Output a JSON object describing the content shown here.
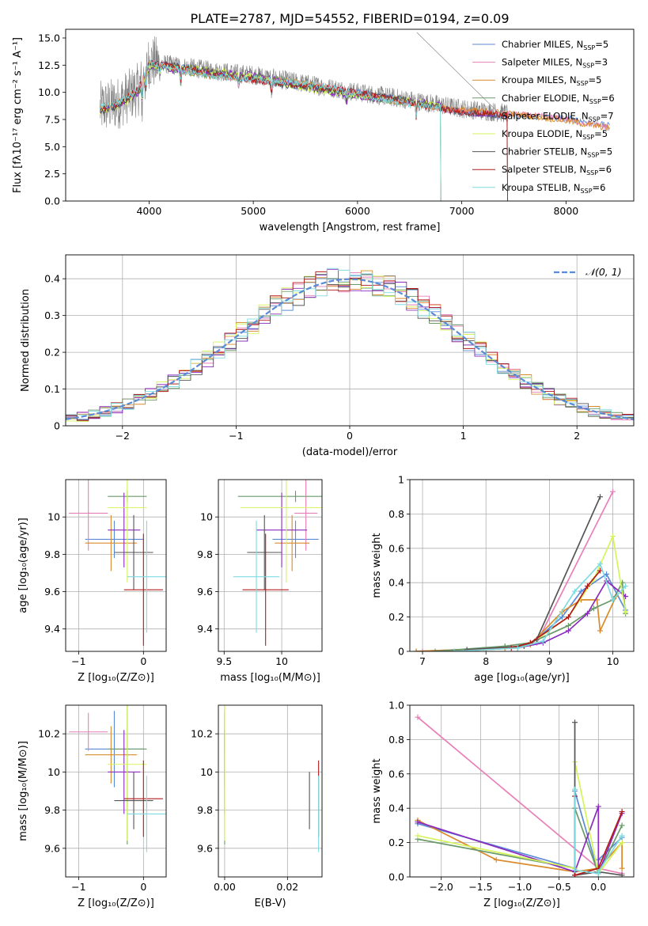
{
  "figure": {
    "title": "PLATE=2787, MJD=54552, FIBERID=0194, z=0.09"
  },
  "colors": {
    "chabrier_miles": "#5b8bd6",
    "salpeter_miles": "#e87fb9",
    "kroupa_miles": "#d98a2b",
    "chabrier_elodie": "#6a9a6a",
    "salpeter_elodie": "#8a2bbf",
    "kroupa_elodie": "#d4f55a",
    "chabrier_stelib": "#555555",
    "salpeter_stelib": "#b31b1b",
    "kroupa_stelib": "#7fdbe0",
    "data": "#808080",
    "normal": "#5b8bd6",
    "grid": "#b0b0b0"
  },
  "models": [
    {
      "key": "chabrier_miles",
      "label": "Chabrier MILES, N",
      "sub": "SSP",
      "n": "=5"
    },
    {
      "key": "salpeter_miles",
      "label": "Salpeter MILES, N",
      "sub": "SSP",
      "n": "=3"
    },
    {
      "key": "kroupa_miles",
      "label": "Kroupa MILES, N",
      "sub": "SSP",
      "n": "=5"
    },
    {
      "key": "chabrier_elodie",
      "label": "Chabrier ELODIE, N",
      "sub": "SSP",
      "n": "=6"
    },
    {
      "key": "salpeter_elodie",
      "label": "Salpeter ELODIE, N",
      "sub": "SSP",
      "n": "=7"
    },
    {
      "key": "kroupa_elodie",
      "label": "Kroupa ELODIE, N",
      "sub": "SSP",
      "n": "=5"
    },
    {
      "key": "chabrier_stelib",
      "label": "Chabrier STELIB, N",
      "sub": "SSP",
      "n": "=5"
    },
    {
      "key": "salpeter_stelib",
      "label": "Salpeter STELIB, N",
      "sub": "SSP",
      "n": "=6"
    },
    {
      "key": "kroupa_stelib",
      "label": "Kroupa STELIB, N",
      "sub": "SSP",
      "n": "=6"
    }
  ],
  "chart_data": [
    {
      "id": "spectrum",
      "type": "line",
      "xlabel": "wavelength [Angstrom, rest frame]",
      "ylabel": "Flux [fλ10⁻¹⁷ erg cm⁻² s⁻¹ A⁻¹]",
      "xlim": [
        3200,
        8650
      ],
      "ylim": [
        0,
        15.8
      ],
      "xticks": [
        4000,
        5000,
        6000,
        7000,
        8000
      ],
      "yticks": [
        0.0,
        2.5,
        5.0,
        7.5,
        10.0,
        12.5,
        15.0
      ],
      "data_range": [
        3530,
        7440
      ],
      "model_range": [
        3530,
        8420
      ],
      "continuum_knots": [
        [
          3500,
          8.5
        ],
        [
          3700,
          9.0
        ],
        [
          3900,
          10.3
        ],
        [
          4000,
          12.8
        ],
        [
          4300,
          12.4
        ],
        [
          4600,
          12.0
        ],
        [
          5000,
          11.6
        ],
        [
          5500,
          10.8
        ],
        [
          6000,
          10.0
        ],
        [
          6500,
          9.3
        ],
        [
          7000,
          8.5
        ],
        [
          7500,
          8.0
        ],
        [
          8000,
          7.6
        ],
        [
          8420,
          7.0
        ]
      ],
      "absorption_lines": [
        [
          3934,
          2.5
        ],
        [
          3969,
          2.0
        ],
        [
          4102,
          1.0
        ],
        [
          4304,
          1.5
        ],
        [
          4861,
          1.0
        ],
        [
          5175,
          1.5
        ],
        [
          5894,
          1.2
        ],
        [
          6563,
          1.5
        ]
      ]
    },
    {
      "id": "residuals",
      "type": "histogram",
      "xlabel": "(data-model)/error",
      "ylabel": "Normed distribution",
      "xlim": [
        -2.5,
        2.5
      ],
      "ylim": [
        0,
        0.465
      ],
      "xticks": [
        -2,
        -1,
        0,
        1,
        2
      ],
      "yticks": [
        0.0,
        0.1,
        0.2,
        0.3,
        0.4
      ],
      "legend": "𝒩(0, 1)",
      "legend_position": "top-right",
      "bin_width": 0.1
    },
    {
      "id": "age_vs_Z",
      "type": "scatter",
      "xlabel": "Z [log₁₀(Z/Z⊙)]",
      "ylabel": "age  [log₁₀(age/yr)]",
      "xlim": [
        -1.2,
        0.35
      ],
      "ylim": [
        9.28,
        10.2
      ],
      "xticks": [
        -1,
        0
      ],
      "yticks": [
        9.4,
        9.6,
        9.8,
        10.0
      ],
      "points": [
        {
          "model": "chabrier_miles",
          "x": -0.45,
          "xerr": 0.45,
          "y": 9.88,
          "yerr": 0.1
        },
        {
          "model": "salpeter_miles",
          "x": -0.85,
          "xerr": 0.3,
          "y": 10.02,
          "yerr": 0.2
        },
        {
          "model": "kroupa_miles",
          "x": -0.5,
          "xerr": 0.4,
          "y": 9.86,
          "yerr": 0.15
        },
        {
          "model": "chabrier_elodie",
          "x": -0.25,
          "xerr": 0.3,
          "y": 10.11,
          "yerr": 0.03
        },
        {
          "model": "salpeter_elodie",
          "x": -0.3,
          "xerr": 0.25,
          "y": 9.93,
          "yerr": 0.2
        },
        {
          "model": "kroupa_elodie",
          "x": -0.25,
          "xerr": 0.3,
          "y": 10.05,
          "yerr": 0.4
        },
        {
          "model": "chabrier_stelib",
          "x": -0.15,
          "xerr": 0.3,
          "y": 9.81,
          "yerr": 0.2
        },
        {
          "model": "salpeter_stelib",
          "x": 0.0,
          "xerr": 0.3,
          "y": 9.61,
          "yerr": 0.3
        },
        {
          "model": "kroupa_stelib",
          "x": 0.05,
          "xerr": 0.3,
          "y": 9.68,
          "yerr": 0.3
        }
      ]
    },
    {
      "id": "age_vs_mass",
      "type": "scatter",
      "xlabel": "mass [log₁₀(M/M⊙)]",
      "ylabel": "",
      "xlim": [
        9.45,
        10.35
      ],
      "ylim": [
        9.28,
        10.2
      ],
      "xticks": [
        9.5,
        10.0
      ],
      "yticks": [
        9.4,
        9.6,
        9.8,
        10.0
      ],
      "points": [
        {
          "model": "chabrier_miles",
          "x": 10.12,
          "xerr": 0.2,
          "y": 9.88,
          "yerr": 0.1
        },
        {
          "model": "salpeter_miles",
          "x": 10.21,
          "xerr": 0.1,
          "y": 10.02,
          "yerr": 0.2
        },
        {
          "model": "kroupa_miles",
          "x": 10.09,
          "xerr": 0.15,
          "y": 9.86,
          "yerr": 0.15
        },
        {
          "model": "chabrier_elodie",
          "x": 10.12,
          "xerr": 0.5,
          "y": 10.11,
          "yerr": 0.03
        },
        {
          "model": "salpeter_elodie",
          "x": 10.0,
          "xerr": 0.22,
          "y": 9.93,
          "yerr": 0.2
        },
        {
          "model": "kroupa_elodie",
          "x": 10.04,
          "xerr": 0.4,
          "y": 10.05,
          "yerr": 0.4
        },
        {
          "model": "chabrier_stelib",
          "x": 9.85,
          "xerr": 0.15,
          "y": 9.81,
          "yerr": 0.2
        },
        {
          "model": "salpeter_stelib",
          "x": 9.86,
          "xerr": 0.2,
          "y": 9.61,
          "yerr": 0.3
        },
        {
          "model": "kroupa_stelib",
          "x": 9.78,
          "xerr": 0.2,
          "y": 9.68,
          "yerr": 0.3
        }
      ]
    },
    {
      "id": "weight_vs_age",
      "type": "line",
      "xlabel": "age  [log₁₀(age/yr)]",
      "ylabel": "mass weight",
      "xlim": [
        6.8,
        10.33
      ],
      "ylim": [
        0,
        1.0
      ],
      "xticks": [
        7,
        8,
        9,
        10
      ],
      "yticks": [
        0.0,
        0.2,
        0.4,
        0.6,
        0.8,
        1.0
      ],
      "series": [
        {
          "model": "chabrier_miles",
          "x": [
            6.9,
            8.3,
            8.7,
            9.2,
            9.5,
            9.9,
            10.2
          ],
          "y": [
            0.0,
            0.02,
            0.04,
            0.2,
            0.35,
            0.45,
            0.24
          ]
        },
        {
          "model": "salpeter_miles",
          "x": [
            7.0,
            8.5,
            8.8,
            10.0
          ],
          "y": [
            0.0,
            0.02,
            0.05,
            0.93
          ]
        },
        {
          "model": "kroupa_miles",
          "x": [
            6.9,
            8.3,
            8.7,
            9.2,
            9.5,
            9.75,
            9.8,
            10.05
          ],
          "y": [
            0.0,
            0.02,
            0.04,
            0.23,
            0.3,
            0.3,
            0.12,
            0.32
          ]
        },
        {
          "model": "chabrier_elodie",
          "x": [
            7.2,
            8.3,
            8.7,
            9.3,
            9.7,
            10.0,
            10.15,
            10.2
          ],
          "y": [
            0.0,
            0.03,
            0.05,
            0.15,
            0.25,
            0.3,
            0.4,
            0.22
          ]
        },
        {
          "model": "salpeter_elodie",
          "x": [
            7.5,
            8.5,
            8.9,
            9.3,
            9.6,
            9.9,
            10.2
          ],
          "y": [
            0.0,
            0.02,
            0.05,
            0.12,
            0.22,
            0.41,
            0.32
          ]
        },
        {
          "model": "kroupa_elodie",
          "x": [
            7.5,
            8.5,
            8.8,
            9.3,
            9.7,
            10.0,
            10.2
          ],
          "y": [
            0.0,
            0.02,
            0.07,
            0.2,
            0.42,
            0.67,
            0.23
          ]
        },
        {
          "model": "chabrier_stelib",
          "x": [
            7.7,
            8.6,
            8.8,
            9.8
          ],
          "y": [
            0.01,
            0.03,
            0.07,
            0.9
          ]
        },
        {
          "model": "salpeter_stelib",
          "x": [
            7.5,
            8.4,
            8.7,
            9.3,
            9.6,
            9.8
          ],
          "y": [
            0.0,
            0.02,
            0.05,
            0.2,
            0.38,
            0.47
          ]
        },
        {
          "model": "kroupa_stelib",
          "x": [
            7.5,
            8.5,
            8.9,
            9.4,
            9.8,
            10.0,
            10.2
          ],
          "y": [
            0.0,
            0.02,
            0.06,
            0.35,
            0.51,
            0.3,
            0.38
          ]
        }
      ]
    },
    {
      "id": "mass_vs_Z",
      "type": "scatter",
      "xlabel": "Z [log₁₀(Z/Z⊙)]",
      "ylabel": "mass [log₁₀(M/M⊙)]",
      "xlim": [
        -1.2,
        0.35
      ],
      "ylim": [
        9.45,
        10.35
      ],
      "xticks": [
        -1,
        0
      ],
      "yticks": [
        9.6,
        9.8,
        10.0,
        10.2
      ],
      "points": [
        {
          "model": "chabrier_miles",
          "x": -0.45,
          "xerr": 0.45,
          "y": 10.12,
          "yerr": 0.2
        },
        {
          "model": "salpeter_miles",
          "x": -0.85,
          "xerr": 0.3,
          "y": 10.21,
          "yerr": 0.1
        },
        {
          "model": "kroupa_miles",
          "x": -0.5,
          "xerr": 0.4,
          "y": 10.09,
          "yerr": 0.15
        },
        {
          "model": "chabrier_elodie",
          "x": -0.25,
          "xerr": 0.3,
          "y": 10.12,
          "yerr": 0.5
        },
        {
          "model": "salpeter_elodie",
          "x": -0.3,
          "xerr": 0.25,
          "y": 10.0,
          "yerr": 0.22
        },
        {
          "model": "kroupa_elodie",
          "x": -0.25,
          "xerr": 0.3,
          "y": 10.04,
          "yerr": 0.4
        },
        {
          "model": "chabrier_stelib",
          "x": -0.15,
          "xerr": 0.3,
          "y": 9.85,
          "yerr": 0.15
        },
        {
          "model": "salpeter_stelib",
          "x": 0.0,
          "xerr": 0.3,
          "y": 9.86,
          "yerr": 0.2
        },
        {
          "model": "kroupa_stelib",
          "x": 0.05,
          "xerr": 0.3,
          "y": 9.78,
          "yerr": 0.2
        }
      ]
    },
    {
      "id": "mass_vs_ebv",
      "type": "scatter",
      "xlabel": "E(B-V)",
      "ylabel": "",
      "xlim": [
        -0.002,
        0.031
      ],
      "ylim": [
        9.45,
        10.35
      ],
      "xticks": [
        0.0,
        0.02
      ],
      "yticks": [
        9.6,
        9.8,
        10.0,
        10.2
      ],
      "points": [
        {
          "model": "chabrier_miles",
          "x": 0.0,
          "y": 10.12,
          "yerr": 0.2
        },
        {
          "model": "salpeter_miles",
          "x": 0.0,
          "y": 10.21,
          "yerr": 0.1
        },
        {
          "model": "kroupa_miles",
          "x": 0.0,
          "y": 10.09,
          "yerr": 0.15
        },
        {
          "model": "chabrier_elodie",
          "x": 0.0,
          "y": 10.12,
          "yerr": 0.5
        },
        {
          "model": "salpeter_elodie",
          "x": 0.0,
          "y": 10.0,
          "yerr": 0.22
        },
        {
          "model": "kroupa_elodie",
          "x": 0.0,
          "y": 10.04,
          "yerr": 0.4
        },
        {
          "model": "chabrier_stelib",
          "x": 0.027,
          "y": 9.85,
          "yerr": 0.15
        },
        {
          "model": "salpeter_stelib",
          "x": 0.0299,
          "y": 9.86,
          "yerr": 0.2
        },
        {
          "model": "kroupa_stelib",
          "x": 0.0299,
          "y": 9.78,
          "yerr": 0.2
        }
      ]
    },
    {
      "id": "weight_vs_Z",
      "type": "line",
      "xlabel": "Z [log₁₀(Z/Z⊙)]",
      "ylabel": "mass weight",
      "xlim": [
        -2.4,
        0.45
      ],
      "ylim": [
        0,
        1.0
      ],
      "xticks": [
        -2.0,
        -1.5,
        -1.0,
        -0.5,
        0.0
      ],
      "yticks": [
        0.0,
        0.2,
        0.4,
        0.6,
        0.8,
        1.0
      ],
      "series": [
        {
          "model": "chabrier_miles",
          "x": [
            -2.3,
            -0.3,
            -0.3,
            0.0,
            0.0,
            0.3
          ],
          "y": [
            0.31,
            0.05,
            0.5,
            0.02,
            0.1,
            0.23
          ]
        },
        {
          "model": "salpeter_miles",
          "x": [
            -2.3,
            0.0,
            0.3
          ],
          "y": [
            0.93,
            0.05,
            0.02
          ]
        },
        {
          "model": "kroupa_miles",
          "x": [
            -2.3,
            -1.3,
            -0.3,
            0.0,
            0.3,
            0.3
          ],
          "y": [
            0.33,
            0.1,
            0.03,
            0.05,
            0.2,
            0.05
          ]
        },
        {
          "model": "chabrier_elodie",
          "x": [
            -2.3,
            -0.3,
            -0.3,
            0.0,
            0.3
          ],
          "y": [
            0.22,
            0.05,
            0.4,
            0.02,
            0.3
          ]
        },
        {
          "model": "salpeter_elodie",
          "x": [
            -2.3,
            -0.3,
            0.0,
            0.0,
            0.3
          ],
          "y": [
            0.32,
            0.03,
            0.41,
            0.02,
            0.37
          ]
        },
        {
          "model": "kroupa_elodie",
          "x": [
            -2.3,
            -0.3,
            -0.3,
            0.0,
            0.3
          ],
          "y": [
            0.24,
            0.05,
            0.67,
            0.02,
            0.2
          ]
        },
        {
          "model": "chabrier_stelib",
          "x": [
            -0.3,
            -0.3,
            0.0,
            0.3
          ],
          "y": [
            0.9,
            0.01,
            0.03,
            0.01
          ]
        },
        {
          "model": "salpeter_stelib",
          "x": [
            -0.3,
            -0.3,
            0.0,
            0.3
          ],
          "y": [
            0.47,
            0.01,
            0.05,
            0.38
          ]
        },
        {
          "model": "kroupa_stelib",
          "x": [
            -0.3,
            -0.3,
            0.0,
            0.0,
            0.3
          ],
          "y": [
            0.51,
            0.04,
            0.02,
            0.03,
            0.24
          ]
        }
      ]
    }
  ]
}
